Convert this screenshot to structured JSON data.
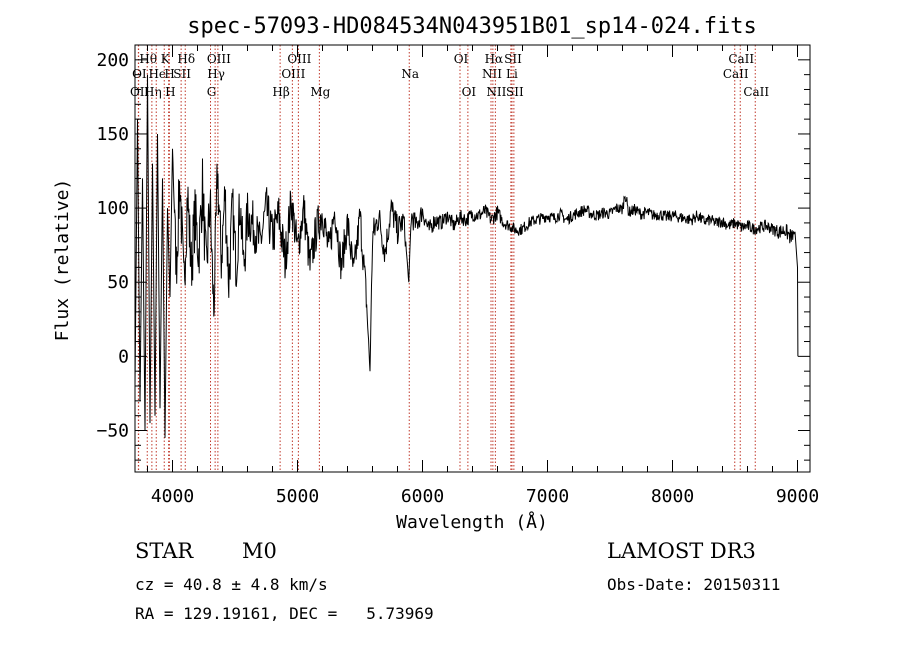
{
  "chart_data": {
    "type": "line",
    "title": "spec-57093-HD084534N043951B01_sp14-024.fits",
    "xlabel": "Wavelength (Å)",
    "ylabel": "Flux (relative)",
    "xlim": [
      3700,
      9100
    ],
    "ylim": [
      -78,
      210
    ],
    "x_ticks": [
      4000,
      5000,
      6000,
      7000,
      8000,
      9000
    ],
    "y_ticks": [
      -50,
      0,
      50,
      100,
      150,
      200
    ],
    "x_tick_labels": [
      "4000",
      "5000",
      "6000",
      "7000",
      "8000",
      "9000"
    ],
    "y_tick_labels": [
      "−50",
      "0",
      "50",
      "100",
      "150",
      "200"
    ],
    "line_color": "#000000",
    "marker_color": "#c0392b",
    "series": [
      {
        "name": "flux",
        "x": [
          3700,
          3720,
          3740,
          3760,
          3780,
          3800,
          3820,
          3840,
          3860,
          3880,
          3900,
          3920,
          3940,
          3960,
          3980,
          4000,
          4030,
          4060,
          4090,
          4120,
          4150,
          4180,
          4210,
          4240,
          4270,
          4300,
          4330,
          4360,
          4390,
          4420,
          4450,
          4480,
          4510,
          4540,
          4570,
          4600,
          4650,
          4700,
          4750,
          4800,
          4850,
          4900,
          4950,
          5000,
          5050,
          5100,
          5150,
          5200,
          5250,
          5300,
          5350,
          5400,
          5450,
          5500,
          5550,
          5580,
          5600,
          5650,
          5700,
          5750,
          5800,
          5850,
          5890,
          5910,
          5950,
          6000,
          6050,
          6100,
          6150,
          6200,
          6250,
          6300,
          6350,
          6400,
          6450,
          6500,
          6550,
          6600,
          6650,
          6700,
          6750,
          6800,
          6850,
          6900,
          6950,
          7000,
          7050,
          7100,
          7150,
          7200,
          7250,
          7300,
          7350,
          7400,
          7450,
          7500,
          7550,
          7600,
          7620,
          7650,
          7700,
          7750,
          7800,
          7850,
          7900,
          7950,
          8000,
          8050,
          8100,
          8150,
          8200,
          8250,
          8300,
          8350,
          8400,
          8450,
          8500,
          8550,
          8600,
          8650,
          8700,
          8750,
          8800,
          8850,
          8900,
          8950,
          8980,
          9000,
          9003
        ],
        "y": [
          -20,
          160,
          -30,
          120,
          -50,
          190,
          -45,
          130,
          -40,
          150,
          -35,
          120,
          -55,
          100,
          40,
          140,
          60,
          120,
          45,
          110,
          60,
          95,
          70,
          115,
          55,
          105,
          30,
          125,
          65,
          110,
          50,
          100,
          60,
          105,
          60,
          95,
          88,
          75,
          100,
          80,
          95,
          65,
          105,
          72,
          100,
          60,
          85,
          98,
          70,
          100,
          60,
          90,
          55,
          95,
          40,
          -10,
          80,
          95,
          70,
          100,
          85,
          92,
          50,
          95,
          88,
          98,
          85,
          92,
          90,
          95,
          88,
          94,
          92,
          96,
          95,
          98,
          92,
          97,
          90,
          88,
          85,
          86,
          90,
          92,
          93,
          95,
          93,
          96,
          92,
          95,
          97,
          99,
          96,
          95,
          97,
          96,
          100,
          99,
          110,
          97,
          99,
          96,
          97,
          95,
          96,
          94,
          95,
          94,
          93,
          92,
          95,
          91,
          92,
          90,
          91,
          88,
          90,
          87,
          88,
          86,
          87,
          88,
          86,
          84,
          85,
          80,
          84,
          60,
          0
        ],
        "jitter": [
          0,
          0,
          0,
          0,
          0,
          0,
          0,
          0,
          0,
          0,
          0,
          0,
          0,
          0,
          0,
          0,
          22,
          22,
          22,
          22,
          22,
          22,
          22,
          22,
          22,
          22,
          20,
          20,
          20,
          20,
          20,
          20,
          18,
          18,
          18,
          18,
          16,
          16,
          16,
          16,
          16,
          16,
          14,
          14,
          14,
          14,
          14,
          14,
          13,
          13,
          12,
          12,
          12,
          12,
          12,
          0,
          12,
          10,
          10,
          10,
          10,
          8,
          0,
          8,
          7,
          7,
          6,
          6,
          5,
          5,
          5,
          5,
          5,
          5,
          5,
          5,
          5,
          5,
          4,
          4,
          4,
          4,
          4,
          4,
          4,
          4,
          4,
          4,
          4,
          4,
          4,
          4,
          4,
          4,
          4,
          4,
          4,
          4,
          4,
          4,
          4,
          4,
          4,
          4,
          4,
          4,
          4,
          4,
          4,
          4,
          4,
          4,
          4,
          4,
          4,
          4,
          4,
          4,
          4,
          4,
          4,
          4,
          4,
          5,
          5,
          6,
          0,
          0,
          0
        ]
      }
    ],
    "line_markers": [
      {
        "label": "OI",
        "x": 3727,
        "row": 2
      },
      {
        "label": "OII",
        "x": 3729,
        "row": 3
      },
      {
        "label": "Hθ",
        "x": 3798,
        "row": 1
      },
      {
        "label": "Hη",
        "x": 3835,
        "row": 3
      },
      {
        "label": "He",
        "x": 3870,
        "row": 2
      },
      {
        "label": "K",
        "x": 3934,
        "row": 1
      },
      {
        "label": "H",
        "x": 3969,
        "row": 2
      },
      {
        "label": "SII",
        "x": 4069,
        "row": 2
      },
      {
        "label": "H",
        "x": 3975,
        "row": 3
      },
      {
        "label": "Hδ",
        "x": 4102,
        "row": 1
      },
      {
        "label": "G",
        "x": 4304,
        "row": 3
      },
      {
        "label": "Hγ",
        "x": 4341,
        "row": 2
      },
      {
        "label": "OIII",
        "x": 4363,
        "row": 1
      },
      {
        "label": "Hβ",
        "x": 4861,
        "row": 3
      },
      {
        "label": "OIII",
        "x": 4959,
        "row": 2
      },
      {
        "label": "OIII",
        "x": 5007,
        "row": 1
      },
      {
        "label": "Mg",
        "x": 5175,
        "row": 3
      },
      {
        "label": "Na",
        "x": 5894,
        "row": 2
      },
      {
        "label": "OI",
        "x": 6300,
        "row": 1
      },
      {
        "label": "OI",
        "x": 6363,
        "row": 3
      },
      {
        "label": "NII",
        "x": 6548,
        "row": 2
      },
      {
        "label": "Hα",
        "x": 6563,
        "row": 1
      },
      {
        "label": "NII",
        "x": 6583,
        "row": 3
      },
      {
        "label": "Li",
        "x": 6707,
        "row": 2
      },
      {
        "label": "SII",
        "x": 6716,
        "row": 1
      },
      {
        "label": "SII",
        "x": 6731,
        "row": 3
      },
      {
        "label": "CaII",
        "x": 8498,
        "row": 2
      },
      {
        "label": "CaII",
        "x": 8542,
        "row": 1
      },
      {
        "label": "CaII",
        "x": 8662,
        "row": 3
      }
    ]
  },
  "info": {
    "class": "STAR",
    "subclass": "M0",
    "survey": "LAMOST DR3",
    "cz": "cz = 40.8 ± 4.8 km/s",
    "obs_date": "Obs-Date: 20150311",
    "radec": "RA = 129.19161, DEC =   5.73969"
  }
}
